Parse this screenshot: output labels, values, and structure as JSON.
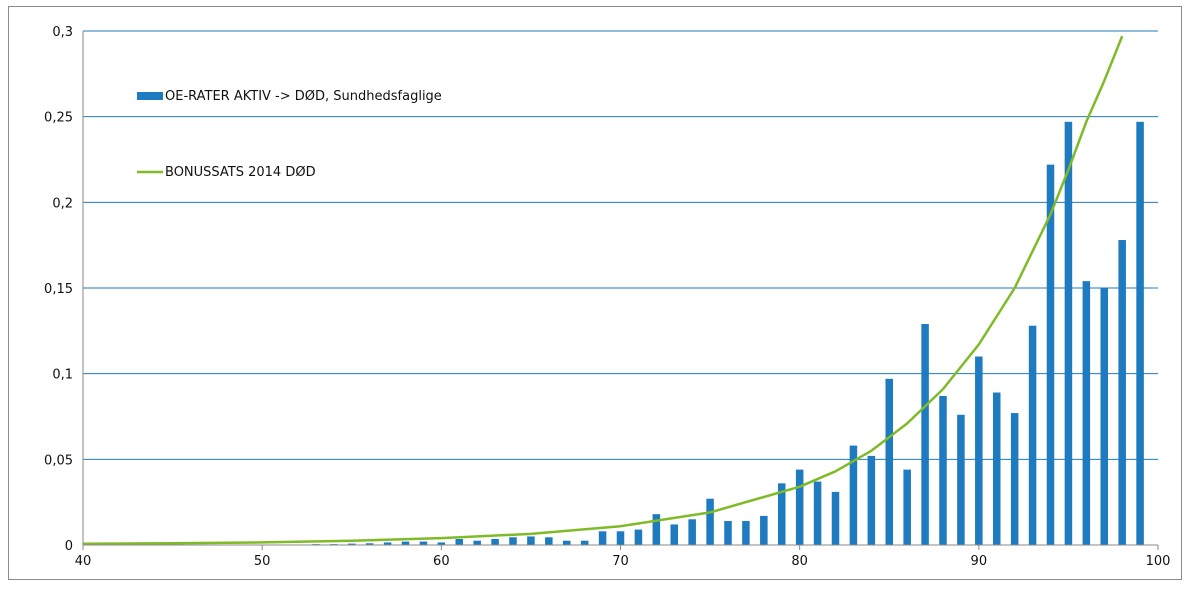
{
  "chart_data": {
    "type": "bar+line",
    "title": "",
    "xlabel": "",
    "ylabel": "",
    "xlim": [
      40,
      100
    ],
    "ylim": [
      0,
      0.3
    ],
    "x_ticks": [
      "40",
      "50",
      "60",
      "70",
      "80",
      "90",
      "100"
    ],
    "y_ticks": [
      "0",
      "0,05",
      "0,1",
      "0,15",
      "0,2",
      "0,25",
      "0,3"
    ],
    "grid": "horizontal",
    "legend_position": "top-left",
    "colors": {
      "bars": "#1f7bbf",
      "line": "#7fba27",
      "grid": "#1f7bbf"
    },
    "series": [
      {
        "name": "OE-RATER AKTIV -> DØD, Sundhedsfaglige",
        "kind": "bar",
        "x": [
          53,
          54,
          55,
          56,
          57,
          58,
          59,
          60,
          61,
          62,
          63,
          64,
          65,
          66,
          67,
          68,
          69,
          70,
          71,
          72,
          73,
          74,
          75,
          76,
          77,
          78,
          79,
          80,
          81,
          82,
          83,
          84,
          85,
          86,
          87,
          88,
          89,
          90,
          91,
          92,
          93,
          94,
          95,
          96,
          97,
          98,
          99
        ],
        "values": [
          0.0005,
          0.0005,
          0.0008,
          0.001,
          0.0015,
          0.002,
          0.002,
          0.0015,
          0.0035,
          0.0025,
          0.0035,
          0.0045,
          0.005,
          0.0045,
          0.0025,
          0.0025,
          0.008,
          0.008,
          0.009,
          0.018,
          0.012,
          0.015,
          0.027,
          0.014,
          0.014,
          0.017,
          0.036,
          0.044,
          0.037,
          0.031,
          0.058,
          0.052,
          0.097,
          0.044,
          0.129,
          0.087,
          0.076,
          0.11,
          0.089,
          0.077,
          0.128,
          0.222,
          0.247,
          0.154,
          0.15,
          0.178,
          0.247
        ]
      },
      {
        "name": "BONUSSATS 2014 DØD",
        "kind": "line",
        "x": [
          40,
          45,
          50,
          55,
          60,
          65,
          70,
          75,
          80,
          82,
          84,
          86,
          88,
          90,
          92,
          94,
          95,
          96,
          97,
          98
        ],
        "values": [
          0.0007,
          0.001,
          0.0015,
          0.0025,
          0.004,
          0.0065,
          0.011,
          0.019,
          0.034,
          0.043,
          0.055,
          0.071,
          0.091,
          0.117,
          0.15,
          0.193,
          0.219,
          0.247,
          0.271,
          0.297
        ]
      }
    ]
  }
}
